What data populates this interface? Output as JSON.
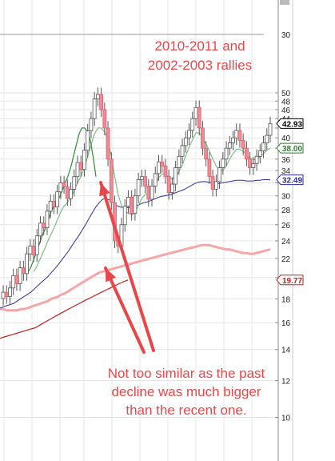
{
  "chart_data": {
    "type": "candlestick",
    "y_scale": "log",
    "ylim": [
      8.5,
      55
    ],
    "y_ticks": [
      10,
      12,
      14,
      16,
      18,
      20,
      22,
      24,
      26,
      28,
      30,
      32,
      34,
      36,
      38,
      40,
      42,
      44,
      46,
      48,
      50
    ],
    "y_tick_labels": [
      "10",
      "12",
      "14",
      "16",
      "18",
      "20",
      "22",
      "24",
      "26",
      "28",
      "30",
      "",
      "34",
      "36",
      "",
      "40",
      "",
      "44",
      "46",
      "48",
      "50"
    ],
    "top_label": "30",
    "price_labels": [
      {
        "value": 42.93,
        "text": "42.93",
        "color": "#000000"
      },
      {
        "value": 38.0,
        "text": "38.00",
        "color": "#2e7d2e"
      },
      {
        "value": 32.49,
        "text": "32.49",
        "color": "#2a2a9a"
      },
      {
        "value": 19.77,
        "text": "19.77",
        "color": "#c0201e"
      }
    ],
    "closes": [
      18.6,
      18.2,
      19.0,
      20.2,
      19.4,
      21.0,
      20.4,
      22.5,
      23.4,
      22.4,
      24.6,
      26.2,
      25.6,
      27.8,
      29.2,
      28.4,
      30.6,
      32.0,
      31.4,
      29.6,
      31.0,
      33.0,
      35.4,
      34.2,
      37.6,
      41.4,
      44.0,
      48.5,
      49.6,
      46.0,
      42.0,
      36.0,
      29.0,
      24.0,
      23.4,
      26.0,
      28.5,
      29.8,
      27.5,
      30.0,
      32.5,
      33.0,
      31.5,
      29.5,
      31.5,
      33.5,
      35.5,
      34.8,
      33.0,
      30.5,
      31.8,
      34.5,
      36.5,
      38.5,
      40.0,
      41.5,
      44.0,
      46.5,
      42.0,
      38.0,
      36.0,
      33.0,
      31.0,
      32.2,
      34.5,
      36.0,
      38.0,
      39.0,
      40.0,
      41.5,
      39.5,
      38.0,
      36.0,
      34.5,
      35.2,
      36.5,
      37.5,
      39.0,
      40.5,
      42.93
    ],
    "ma_green": [
      null,
      null,
      null,
      null,
      null,
      null,
      null,
      null,
      null,
      20.6,
      21.2,
      22.0,
      22.8,
      23.8,
      24.7,
      25.5,
      26.6,
      27.7,
      28.5,
      29.0,
      29.8,
      30.8,
      32.0,
      33.0,
      34.5,
      36.5,
      38.6,
      40.8,
      42.0,
      42.0,
      41.2,
      39.5,
      36.4,
      33.0,
      30.2,
      28.6,
      27.8,
      27.5,
      27.3,
      27.6,
      28.6,
      29.6,
      30.2,
      30.4,
      31.0,
      31.8,
      32.8,
      33.4,
      33.4,
      33.0,
      32.6,
      33.0,
      33.8,
      35.0,
      36.6,
      38.2,
      39.6,
      41.0,
      41.0,
      40.0,
      38.8,
      37.5,
      36.0,
      34.8,
      34.0,
      34.0,
      34.8,
      36.0,
      37.0,
      37.8,
      37.8,
      37.4,
      36.8,
      36.2,
      35.9,
      36.0,
      36.4,
      37.0,
      37.6,
      38.0
    ],
    "ma_blue": [
      17.2,
      17.3,
      17.4,
      17.5,
      17.6,
      17.8,
      18.0,
      18.2,
      18.4,
      18.6,
      18.9,
      19.2,
      19.5,
      19.8,
      20.1,
      20.5,
      20.9,
      21.3,
      21.8,
      22.3,
      22.8,
      23.4,
      24.0,
      24.6,
      25.3,
      26.0,
      26.8,
      27.6,
      28.4,
      29.0,
      29.5,
      29.6,
      29.4,
      29.0,
      28.6,
      28.4,
      28.3,
      28.3,
      28.3,
      28.4,
      28.6,
      28.8,
      29.0,
      29.1,
      29.3,
      29.5,
      29.7,
      29.9,
      30.0,
      30.1,
      30.2,
      30.4,
      30.6,
      30.8,
      31.0,
      31.3,
      31.6,
      31.9,
      32.1,
      32.2,
      32.2,
      32.1,
      32.0,
      31.9,
      31.9,
      32.0,
      32.1,
      32.2,
      32.3,
      32.4,
      32.4,
      32.4,
      32.3,
      32.3,
      32.3,
      32.4,
      32.4,
      32.5,
      32.5,
      32.49
    ],
    "ma_pink": [
      17.1,
      17.1,
      17.0,
      17.0,
      17.0,
      17.0,
      17.1,
      17.1,
      17.2,
      17.3,
      17.4,
      17.5,
      17.6,
      17.7,
      17.8,
      18.0,
      18.1,
      18.2,
      18.4,
      18.5,
      18.7,
      18.9,
      19.1,
      19.3,
      19.5,
      19.7,
      19.9,
      20.1,
      20.3,
      20.5,
      20.6,
      20.7,
      20.8,
      20.9,
      21.0,
      21.1,
      21.2,
      21.3,
      21.4,
      21.5,
      21.6,
      21.7,
      21.8,
      21.9,
      22.0,
      22.1,
      22.2,
      22.3,
      22.4,
      22.5,
      22.6,
      22.7,
      22.8,
      22.9,
      23.0,
      23.1,
      23.2,
      23.3,
      23.4,
      23.5,
      23.5,
      23.5,
      23.4,
      23.3,
      23.2,
      23.1,
      23.0,
      23.0,
      22.9,
      22.8,
      22.7,
      22.6,
      22.6,
      22.5,
      22.5,
      22.6,
      22.7,
      22.8,
      22.9,
      23.0
    ],
    "ma_red": [
      14.8,
      14.9,
      15.0,
      15.1,
      15.2,
      15.3,
      15.4,
      15.5,
      15.6,
      15.8,
      16.0,
      16.2,
      16.4,
      16.6,
      16.8,
      17.0,
      17.2,
      17.4,
      17.6,
      17.8,
      18.0,
      18.2,
      18.4,
      18.6,
      18.8,
      19.0,
      19.2,
      19.4,
      19.6,
      19.77
    ]
  },
  "annotations": {
    "top": [
      "2010-2011 and",
      "2002-2003 rallies"
    ],
    "bottom": [
      "Not too similar as the past",
      "decline was much bigger",
      "than the recent one."
    ]
  },
  "colors": {
    "annotation": "#e8474a",
    "arrow": "#e8474a",
    "up_candle": "#ffffff",
    "down_candle": "#f08a94",
    "ma_green": "#2e8b3a",
    "ma_blue": "#2f2f9c",
    "ma_pink": "#f6a6a6",
    "ma_red": "#c0201e"
  }
}
